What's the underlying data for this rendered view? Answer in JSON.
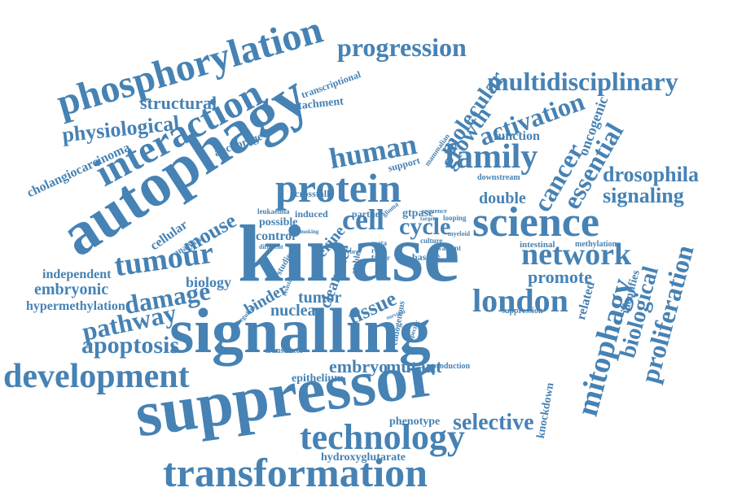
{
  "colors": {
    "word": "#4682b4",
    "background": "#ffffff"
  },
  "words": [
    {
      "id": "kinase",
      "text": "kinase",
      "rot": 0
    },
    {
      "id": "signalling",
      "text": "signalling",
      "rot": 0
    },
    {
      "id": "suppressor",
      "text": "suppressor",
      "rot": -8
    },
    {
      "id": "autophagy",
      "text": "autophagy",
      "rot": -33
    },
    {
      "id": "transformation",
      "text": "transformation",
      "rot": 0
    },
    {
      "id": "science",
      "text": "science",
      "rot": 0
    },
    {
      "id": "protein",
      "text": "protein",
      "rot": 0
    },
    {
      "id": "development",
      "text": "development",
      "rot": 0
    },
    {
      "id": "phosphorylation",
      "text": "phosphorylation",
      "rot": -16
    },
    {
      "id": "interaction",
      "text": "interaction",
      "rot": -28
    },
    {
      "id": "technology",
      "text": "technology",
      "rot": 0
    },
    {
      "id": "multidisciplinary",
      "text": "multidisciplinary",
      "rot": 0
    },
    {
      "id": "network",
      "text": "network",
      "rot": 0
    },
    {
      "id": "london",
      "text": "london",
      "rot": 0
    },
    {
      "id": "family",
      "text": "family",
      "rot": 0
    },
    {
      "id": "tumour",
      "text": "tumour",
      "rot": -8
    },
    {
      "id": "mitophagy",
      "text": "mitophagy",
      "rot": -75
    },
    {
      "id": "proliferation",
      "text": "proliferation",
      "rot": -75
    },
    {
      "id": "progression",
      "text": "progression",
      "rot": 0
    },
    {
      "id": "human",
      "text": "human",
      "rot": -10
    },
    {
      "id": "cell",
      "text": "cell",
      "rot": 0
    },
    {
      "id": "cycle",
      "text": "cycle",
      "rot": 0
    },
    {
      "id": "cancer",
      "text": "cancer",
      "rot": -60
    },
    {
      "id": "essential",
      "text": "essential",
      "rot": -60
    },
    {
      "id": "activation",
      "text": "activation",
      "rot": -20
    },
    {
      "id": "damage",
      "text": "damage",
      "rot": -10
    },
    {
      "id": "pathway",
      "text": "pathway",
      "rot": -12
    },
    {
      "id": "apoptosis",
      "text": "apoptosis",
      "rot": 0
    },
    {
      "id": "selective",
      "text": "selective",
      "rot": 0
    },
    {
      "id": "drosophila",
      "text": "drosophila",
      "rot": 0
    },
    {
      "id": "signaling",
      "text": "signaling",
      "rot": 0
    },
    {
      "id": "physiological",
      "text": "physiological",
      "rot": -6
    },
    {
      "id": "structural",
      "text": "structural",
      "rot": 0
    },
    {
      "id": "molecular",
      "text": "molecular",
      "rot": -55
    },
    {
      "id": "growth",
      "text": "growth",
      "rot": -55
    },
    {
      "id": "biological",
      "text": "biological",
      "rot": -75
    },
    {
      "id": "mouse",
      "text": "mouse",
      "rot": -30
    },
    {
      "id": "promote",
      "text": "promote",
      "rot": 0
    },
    {
      "id": "embryo",
      "text": "embryo",
      "rot": 0
    },
    {
      "id": "mutant",
      "text": "mutant",
      "rot": 0
    },
    {
      "id": "tissue",
      "text": "tissue",
      "rot": -25
    },
    {
      "id": "serine",
      "text": "serine",
      "rot": -50
    },
    {
      "id": "cholangiocarcinoma",
      "text": "cholangiocarcinoma",
      "rot": -25
    },
    {
      "id": "embryonic",
      "text": "embryonic",
      "rot": 0
    },
    {
      "id": "independent",
      "text": "independent",
      "rot": 0
    },
    {
      "id": "hypermethylation",
      "text": "hypermethylation",
      "rot": 0
    },
    {
      "id": "nuclear",
      "text": "nuclear",
      "rot": 0
    },
    {
      "id": "tumor",
      "text": "tumor",
      "rot": 0
    },
    {
      "id": "binder",
      "text": "binder",
      "rot": -30
    },
    {
      "id": "clearance",
      "text": "clearance",
      "rot": -70
    },
    {
      "id": "double",
      "text": "double",
      "rot": 0
    },
    {
      "id": "function",
      "text": "function",
      "rot": 0
    },
    {
      "id": "oncogenic",
      "text": "oncogenic",
      "rot": -70
    },
    {
      "id": "biology",
      "text": "biology",
      "rot": 0
    },
    {
      "id": "detachment",
      "text": "detachment",
      "rot": -6
    },
    {
      "id": "cellular",
      "text": "cellular",
      "rot": -35
    },
    {
      "id": "control",
      "text": "control",
      "rot": 0
    },
    {
      "id": "phenotype",
      "text": "phenotype",
      "rot": 0
    },
    {
      "id": "hydroxyglutarate",
      "text": "hydroxyglutarate",
      "rot": 0
    },
    {
      "id": "related",
      "text": "related",
      "rot": -75
    },
    {
      "id": "knockdown",
      "text": "knockdown",
      "rot": -80
    },
    {
      "id": "identifies",
      "text": "identifies",
      "rot": -75
    },
    {
      "id": "anchorage",
      "text": "anchorage",
      "rot": -20
    },
    {
      "id": "epithelium",
      "text": "epithelium",
      "rot": 0
    },
    {
      "id": "transcriptional",
      "text": "transcriptional",
      "rot": -20
    },
    {
      "id": "possible",
      "text": "possible",
      "rot": 0
    },
    {
      "id": "crosstalk",
      "text": "crosstalk",
      "rot": 0
    },
    {
      "id": "partner",
      "text": "partner",
      "rot": 0
    },
    {
      "id": "gtpase",
      "text": "gtpase",
      "rot": 0
    },
    {
      "id": "support",
      "text": "support",
      "rot": -15
    },
    {
      "id": "induced",
      "text": "induced",
      "rot": 0
    },
    {
      "id": "analysis",
      "text": "analysis",
      "rot": -30
    },
    {
      "id": "studies",
      "text": "studies",
      "rot": -60
    },
    {
      "id": "stable",
      "text": "stable",
      "rot": -80
    },
    {
      "id": "topic",
      "text": "topic",
      "rot": -70
    },
    {
      "id": "basis",
      "text": "basis",
      "rot": 0
    },
    {
      "id": "endogenous",
      "text": "endogenous",
      "rot": -80
    },
    {
      "id": "transducer",
      "text": "transducer",
      "rot": 0
    },
    {
      "id": "production",
      "text": "production",
      "rot": 0
    },
    {
      "id": "intestinal",
      "text": "intestinal",
      "rot": 0
    },
    {
      "id": "methylation",
      "text": "methylation",
      "rot": 0
    },
    {
      "id": "suppression",
      "text": "suppression",
      "rot": 0
    },
    {
      "id": "downstream",
      "text": "downstream",
      "rot": 0
    },
    {
      "id": "leukaemia",
      "text": "leukaemia",
      "rot": 0
    },
    {
      "id": "sequence",
      "text": "sequence",
      "rot": 0
    },
    {
      "id": "looping",
      "text": "looping",
      "rot": 0
    },
    {
      "id": "mammalian",
      "text": "mammalian",
      "rot": -55
    },
    {
      "id": "culture",
      "text": "culture",
      "rot": 0
    },
    {
      "id": "meta",
      "text": "meta",
      "rot": 0
    },
    {
      "id": "role",
      "text": "role",
      "rot": 0
    },
    {
      "id": "factor",
      "text": "factor",
      "rot": 0
    },
    {
      "id": "variant",
      "text": "variant",
      "rot": 0
    },
    {
      "id": "myeloid",
      "text": "myeloid",
      "rot": 0
    },
    {
      "id": "specific",
      "text": "specific",
      "rot": -70
    },
    {
      "id": "effector",
      "text": "effector",
      "rot": -60
    },
    {
      "id": "resistance",
      "text": "resistance",
      "rot": -70
    },
    {
      "id": "regulator",
      "text": "regulator",
      "rot": -45
    },
    {
      "id": "different",
      "text": "different",
      "rot": 0
    },
    {
      "id": "core",
      "text": "core",
      "rot": 0
    },
    {
      "id": "glioma",
      "text": "glioma",
      "rot": -40
    },
    {
      "id": "target",
      "text": "target",
      "rot": 0
    },
    {
      "id": "survival",
      "text": "survival",
      "rot": -20
    },
    {
      "id": "smoking",
      "text": "smoking",
      "rot": 0
    }
  ]
}
